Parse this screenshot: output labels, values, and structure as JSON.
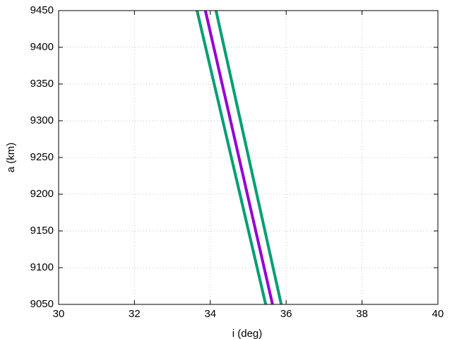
{
  "chart_data": {
    "type": "line",
    "x_label": "i (deg)",
    "y_label": "a (km)",
    "series": [
      {
        "color": "#009e73",
        "x": [
          33.65,
          35.46
        ],
        "values": [
          9450,
          9050
        ]
      },
      {
        "color": "#009e73",
        "x": [
          34.15,
          35.87
        ],
        "values": [
          9450,
          9050
        ]
      },
      {
        "color": "#9400d3",
        "x": [
          33.87,
          35.64
        ],
        "values": [
          9450,
          9050
        ]
      }
    ],
    "xlim": [
      30,
      40
    ],
    "xticks": [
      30,
      32,
      34,
      36,
      38,
      40
    ],
    "ylim": [
      9050,
      9450
    ],
    "yticks": [
      9050,
      9100,
      9150,
      9200,
      9250,
      9300,
      9350,
      9400,
      9450
    ],
    "grid": true
  }
}
